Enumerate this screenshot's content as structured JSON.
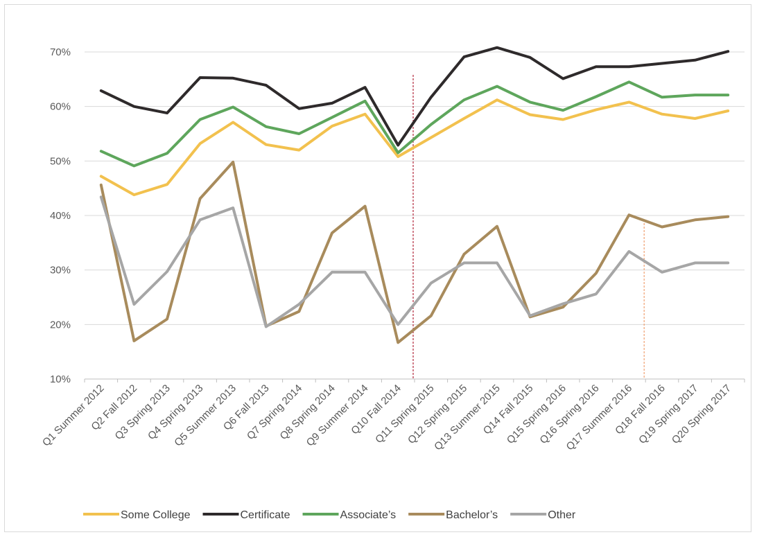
{
  "chart_data": {
    "type": "line",
    "title": "",
    "xlabel": "",
    "ylabel": "",
    "ylim": [
      10,
      70
    ],
    "y_ticks": [
      "10%",
      "20%",
      "30%",
      "40%",
      "50%",
      "60%",
      "70%"
    ],
    "y_tick_values": [
      10,
      20,
      30,
      40,
      50,
      60,
      70
    ],
    "grid": "horizontal",
    "legend_position": "bottom",
    "categories": [
      "Q1 Summer 2012",
      "Q2 Fall 2012",
      "Q3 Spring 2013",
      "Q4 Spring 2013",
      "Q5 Summer 2013",
      "Q6 Fall 2013",
      "Q7 Spring 2014",
      "Q8 Spring 2014",
      "Q9 Summer 2014",
      "Q10 Fall 2014",
      "Q11 Spring 2015",
      "Q12 Spring 2015",
      "Q13 Summer 2015",
      "Q14 Fall 2015",
      "Q15 Spring 2016",
      "Q16 Spring 2016",
      "Q17 Summer 2016",
      "Q18 Fall 2016",
      "Q19 Spring 2017",
      "Q20 Spring 2017"
    ],
    "series": [
      {
        "name": "Some College",
        "color": "#f2c14e",
        "values": [
          47.2,
          43.8,
          45.7,
          53.2,
          57.1,
          53.0,
          52.0,
          56.4,
          58.6,
          50.8,
          54.3,
          57.8,
          61.2,
          58.5,
          57.6,
          59.4,
          60.8,
          58.6,
          57.8,
          59.2
        ]
      },
      {
        "name": "Certificate",
        "color": "#2e2a2b",
        "values": [
          62.9,
          60.0,
          58.8,
          65.3,
          65.2,
          63.9,
          59.6,
          60.6,
          63.5,
          52.9,
          61.7,
          69.1,
          70.8,
          69.0,
          65.1,
          67.3,
          67.3,
          67.9,
          68.5,
          70.1
        ]
      },
      {
        "name": "Associate’s",
        "color": "#5ea65c",
        "values": [
          51.8,
          49.1,
          51.4,
          57.6,
          59.9,
          56.3,
          55.0,
          58.0,
          61.0,
          51.5,
          56.7,
          61.2,
          63.7,
          60.8,
          59.3,
          61.8,
          64.5,
          61.7,
          62.1,
          62.1
        ]
      },
      {
        "name": "Bachelor’s",
        "color": "#a88b5c",
        "values": [
          45.6,
          17.0,
          21.0,
          43.1,
          49.8,
          19.7,
          22.4,
          36.8,
          41.7,
          16.7,
          21.6,
          32.9,
          38.0,
          21.4,
          23.2,
          29.4,
          40.1,
          37.9,
          39.2,
          39.8
        ]
      },
      {
        "name": "Other",
        "color": "#a6a6a6",
        "values": [
          43.4,
          23.7,
          29.7,
          39.2,
          41.4,
          19.6,
          23.7,
          29.6,
          29.6,
          20.0,
          27.6,
          31.3,
          31.3,
          21.6,
          23.8,
          25.6,
          33.4,
          29.6,
          31.3,
          31.3
        ]
      }
    ],
    "vertical_markers": [
      {
        "after_index": 9,
        "color": "#b2263a"
      },
      {
        "after_index": 16,
        "color": "#f0a070"
      }
    ]
  }
}
